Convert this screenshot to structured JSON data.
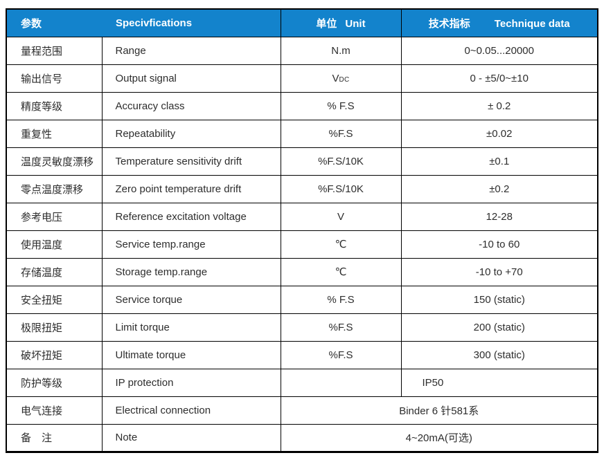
{
  "table": {
    "colors": {
      "header_bg": "#1383cc",
      "header_text": "#ffffff",
      "border": "#000000",
      "body_text": "#2d2d2d"
    },
    "header": {
      "param_cn": "参数",
      "spec_en": "Specivfications",
      "unit_cn": "单位",
      "unit_en": "Unit",
      "tech_cn": "技术指标",
      "tech_en": "Technique data"
    },
    "rows": [
      {
        "cn": "量程范围",
        "en": "Range",
        "unit": "N.m",
        "value": "0~0.05...20000"
      },
      {
        "cn": "输出信号",
        "en": "Output signal",
        "unit": "V",
        "unit_sub": "DC",
        "value": "0 - ±5/0~±10"
      },
      {
        "cn": "精度等级",
        "en": "Accuracy class",
        "unit": "% F.S",
        "value": "± 0.2"
      },
      {
        "cn": "重复性",
        "en": "Repeatability",
        "unit": "%F.S",
        "value": "±0.02"
      },
      {
        "cn": "温度灵敏度漂移",
        "en": "Temperature sensitivity drift",
        "unit": "%F.S/10K",
        "value": "±0.1"
      },
      {
        "cn": "零点温度漂移",
        "en": "Zero point temperature drift",
        "unit": "%F.S/10K",
        "value": "±0.2"
      },
      {
        "cn": "参考电压",
        "en": "Reference excitation voltage",
        "unit": "V",
        "value": "12-28"
      },
      {
        "cn": "使用温度",
        "en": "Service temp.range",
        "unit": "℃",
        "value": "-10 to 60"
      },
      {
        "cn": "存储温度",
        "en": "Storage temp.range",
        "unit": "℃",
        "value": "-10 to +70"
      },
      {
        "cn": "安全扭矩",
        "en": "Service torque",
        "unit": "% F.S",
        "value": "150 (static)"
      },
      {
        "cn": "极限扭矩",
        "en": "Limit torque",
        "unit": "%F.S",
        "value": "200 (static)"
      },
      {
        "cn": "破坏扭矩",
        "en": "Ultimate torque",
        "unit": "%F.S",
        "value": "300 (static)"
      },
      {
        "cn": "防护等级",
        "en": "IP protection",
        "unit": "",
        "value": "IP50",
        "value_align": "left"
      },
      {
        "cn": "电气连接",
        "en": "Electrical connection",
        "merged_value": "Binder 6 针581系"
      },
      {
        "cn": "备　注",
        "en": "Note",
        "merged_value": "4~20mA(可选)"
      }
    ]
  }
}
